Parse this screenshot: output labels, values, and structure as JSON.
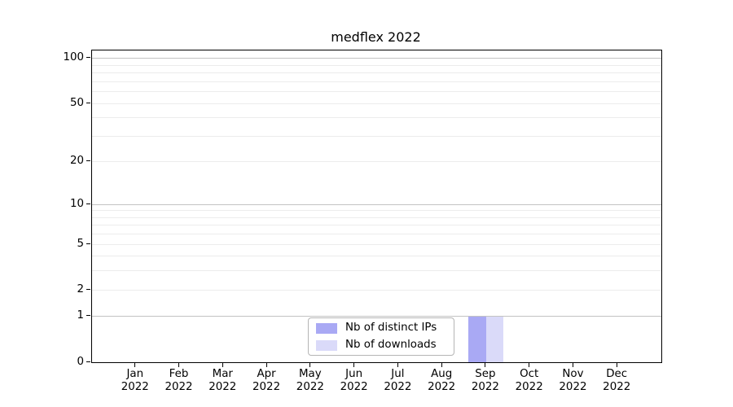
{
  "chart_data": {
    "type": "bar",
    "title": "medflex 2022",
    "x": {
      "categories": [
        "Jan",
        "Feb",
        "Mar",
        "Apr",
        "May",
        "Jun",
        "Jul",
        "Aug",
        "Sep",
        "Oct",
        "Nov",
        "Dec"
      ],
      "year": "2022"
    },
    "series": [
      {
        "name": "Nb of distinct IPs",
        "color": "#a9a9f4",
        "values": [
          0,
          0,
          0,
          0,
          0,
          0,
          0,
          0,
          1,
          0,
          0,
          0
        ]
      },
      {
        "name": "Nb of downloads",
        "color": "#dadaf9",
        "values": [
          0,
          0,
          0,
          0,
          0,
          0,
          0,
          0,
          1,
          0,
          0,
          0
        ]
      }
    ],
    "y_axis": {
      "scale": "log1p",
      "min": 0,
      "max": 113,
      "tick_values": [
        0,
        1,
        2,
        5,
        10,
        20,
        50,
        100
      ],
      "tick_labels": [
        "0",
        "1",
        "2",
        "5",
        "10",
        "20",
        "50",
        "100"
      ]
    },
    "grid": {
      "major_values": [
        1,
        10,
        100
      ],
      "minor_values": [
        2,
        3,
        4,
        5,
        6,
        7,
        8,
        9,
        20,
        30,
        40,
        50,
        60,
        70,
        80,
        90
      ],
      "major_color": "#c3c3c3",
      "minor_color": "#ececec"
    },
    "legend": {
      "location": "lower center inside",
      "entries": [
        "Nb of distinct IPs",
        "Nb of downloads"
      ]
    },
    "colors": {
      "spine": "#000000",
      "text": "#000000",
      "background": "#ffffff"
    }
  }
}
